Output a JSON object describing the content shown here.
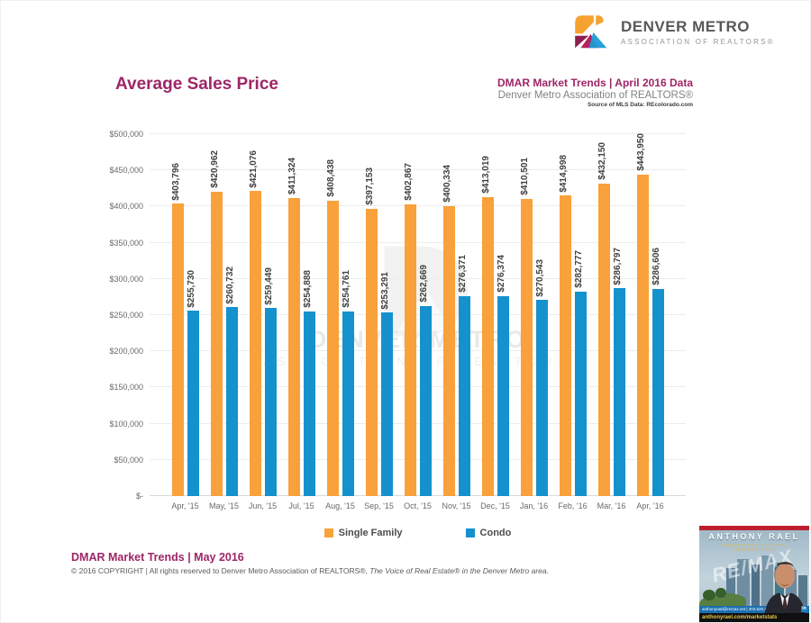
{
  "logo": {
    "line1": "DENVER METRO",
    "line2": "ASSOCIATION OF REALTORS®"
  },
  "page_title": "Average Sales Price",
  "header_right": {
    "line1": "DMAR Market Trends | April 2016 Data",
    "line2": "Denver Metro Association of REALTORS®",
    "source": "Source of MLS Data: REcolorado.com"
  },
  "chart_data": {
    "type": "bar",
    "title": "Average Sales Price",
    "categories": [
      "Apr, '15",
      "May, '15",
      "Jun, '15",
      "Jul, '15",
      "Aug, '15",
      "Sep, '15",
      "Oct, '15",
      "Nov, '15",
      "Dec, '15",
      "Jan, '16",
      "Feb, '16",
      "Mar, '16",
      "Apr, '16"
    ],
    "series": [
      {
        "name": "Single Family",
        "color": "#F9A13A",
        "values": [
          403796,
          420962,
          421076,
          411324,
          408438,
          397153,
          402867,
          400334,
          413019,
          410501,
          414998,
          432150,
          443950
        ]
      },
      {
        "name": "Condo",
        "color": "#1592CE",
        "values": [
          255730,
          260732,
          259449,
          254888,
          254761,
          253291,
          262669,
          276371,
          276374,
          270543,
          282777,
          286797,
          286606
        ]
      }
    ],
    "ylim": [
      0,
      500000
    ],
    "ytick_step": 50000,
    "ytick_labels": [
      "$-",
      "$50,000",
      "$100,000",
      "$150,000",
      "$200,000",
      "$250,000",
      "$300,000",
      "$350,000",
      "$400,000",
      "$450,000",
      "$500,000"
    ],
    "grid": true,
    "legend_position": "bottom",
    "value_label_style": "rotated 90°, $#,##0"
  },
  "watermark": {
    "line1": "DENVER METRO",
    "line2": "ASSOCIATION OF REALTORS"
  },
  "footer": {
    "title": "DMAR Market Trends | May 2016",
    "copyright": "© 2016 COPYRIGHT | All rights reserved to Denver Metro Association of REALTORS®, ",
    "copyright_italic": "The Voice of Real Estate® in the Denver Metro area."
  },
  "ad": {
    "name": "ANTHONY RAEL",
    "tagline": "DENVER REAL ESTATE PROFESSIONAL",
    "watermark": "RE/MAX",
    "contact": "anthonyrael@remax.net | 303.520.3179",
    "website": "anthonyrael.com/marketstats",
    "linkedin": "in"
  }
}
